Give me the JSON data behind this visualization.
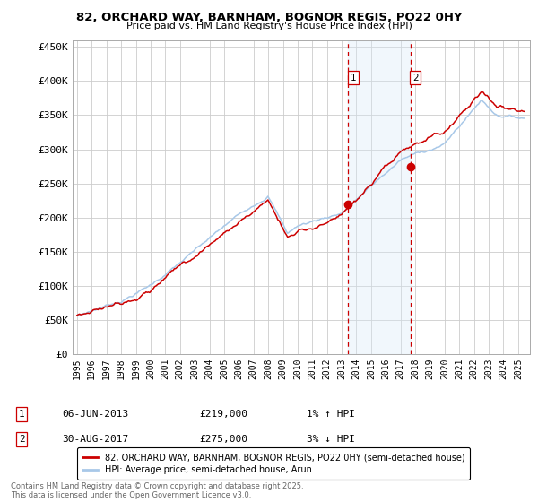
{
  "title": "82, ORCHARD WAY, BARNHAM, BOGNOR REGIS, PO22 0HY",
  "subtitle": "Price paid vs. HM Land Registry's House Price Index (HPI)",
  "ylim": [
    0,
    460000
  ],
  "xlim_start": 1994.7,
  "xlim_end": 2025.8,
  "yticks": [
    0,
    50000,
    100000,
    150000,
    200000,
    250000,
    300000,
    350000,
    400000,
    450000
  ],
  "ytick_labels": [
    "£0",
    "£50K",
    "£100K",
    "£150K",
    "£200K",
    "£250K",
    "£300K",
    "£350K",
    "£400K",
    "£450K"
  ],
  "xticks": [
    1995,
    1996,
    1997,
    1998,
    1999,
    2000,
    2001,
    2002,
    2003,
    2004,
    2005,
    2006,
    2007,
    2008,
    2009,
    2010,
    2011,
    2012,
    2013,
    2014,
    2015,
    2016,
    2017,
    2018,
    2019,
    2020,
    2021,
    2022,
    2023,
    2024,
    2025
  ],
  "grid_color": "#cccccc",
  "hpi_color": "#a8c8e8",
  "price_color": "#cc0000",
  "bg_color": "#ffffff",
  "shade_color": "#d8eaf8",
  "purchase1_x": 2013.43,
  "purchase1_y": 219000,
  "purchase2_x": 2017.66,
  "purchase2_y": 275000,
  "legend_line1": "82, ORCHARD WAY, BARNHAM, BOGNOR REGIS, PO22 0HY (semi-detached house)",
  "legend_line2": "HPI: Average price, semi-detached house, Arun",
  "note1_label": "1",
  "note1_date": "06-JUN-2013",
  "note1_price": "£219,000",
  "note1_hpi": "1% ↑ HPI",
  "note2_label": "2",
  "note2_date": "30-AUG-2017",
  "note2_price": "£275,000",
  "note2_hpi": "3% ↓ HPI",
  "footer": "Contains HM Land Registry data © Crown copyright and database right 2025.\nThis data is licensed under the Open Government Licence v3.0."
}
